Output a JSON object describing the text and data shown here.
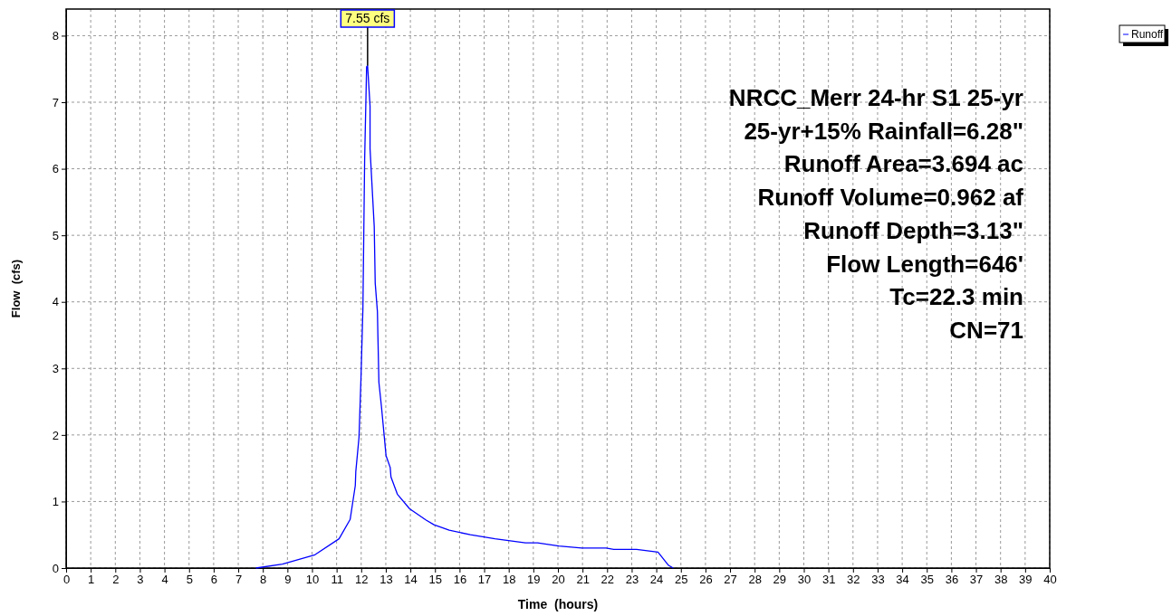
{
  "chart_data": {
    "type": "line",
    "xlabel": "Time  (hours)",
    "ylabel": "Flow  (cfs)",
    "xlim": [
      0,
      40
    ],
    "ylim": [
      0,
      8.4
    ],
    "xticks": [
      0,
      1,
      2,
      3,
      4,
      5,
      6,
      7,
      8,
      9,
      10,
      11,
      12,
      13,
      14,
      15,
      16,
      17,
      18,
      19,
      20,
      21,
      22,
      23,
      24,
      25,
      26,
      27,
      28,
      29,
      30,
      31,
      32,
      33,
      34,
      35,
      36,
      37,
      38,
      39,
      40
    ],
    "yticks": [
      0,
      1,
      2,
      3,
      4,
      5,
      6,
      7,
      8
    ],
    "grid": true,
    "legend": "top right",
    "marker": "none",
    "line_style": "solid",
    "series": [
      {
        "name": "Runoff",
        "color": "#0000ff",
        "x": [
          7.72,
          8.8,
          10.12,
          11.1,
          11.55,
          11.76,
          11.78,
          11.91,
          11.99,
          12.07,
          12.14,
          12.22,
          12.26,
          12.36,
          12.36,
          12.53,
          12.57,
          12.66,
          12.68,
          12.72,
          12.82,
          13.01,
          13.18,
          13.21,
          13.47,
          13.97,
          14.64,
          14.96,
          15.58,
          16.44,
          17.44,
          18.68,
          19.17,
          20.04,
          20.97,
          21.96,
          22.27,
          23.2,
          24.07,
          24.5,
          24.69
        ],
        "values": [
          0,
          0.06,
          0.2,
          0.44,
          0.73,
          1.24,
          1.45,
          1.96,
          2.84,
          3.91,
          6.14,
          7.53,
          7.55,
          6.94,
          6.3,
          5.13,
          4.28,
          3.85,
          3.48,
          2.79,
          2.44,
          1.69,
          1.51,
          1.37,
          1.11,
          0.89,
          0.72,
          0.65,
          0.57,
          0.5,
          0.44,
          0.38,
          0.38,
          0.33,
          0.3,
          0.3,
          0.28,
          0.28,
          0.24,
          0.04,
          0
        ]
      }
    ],
    "annotations": [
      {
        "text": "7.55 cfs",
        "x": 12.26,
        "y": 7.55
      },
      "NRCC_Merr 24-hr S1 25-yr",
      "25-yr+15% Rainfall=6.28\"",
      "Runoff Area=3.694 ac",
      "Runoff Volume=0.962 af",
      "Runoff Depth=3.13\"",
      "Flow Length=646'",
      "Tc=22.3 min",
      "CN=71"
    ]
  }
}
